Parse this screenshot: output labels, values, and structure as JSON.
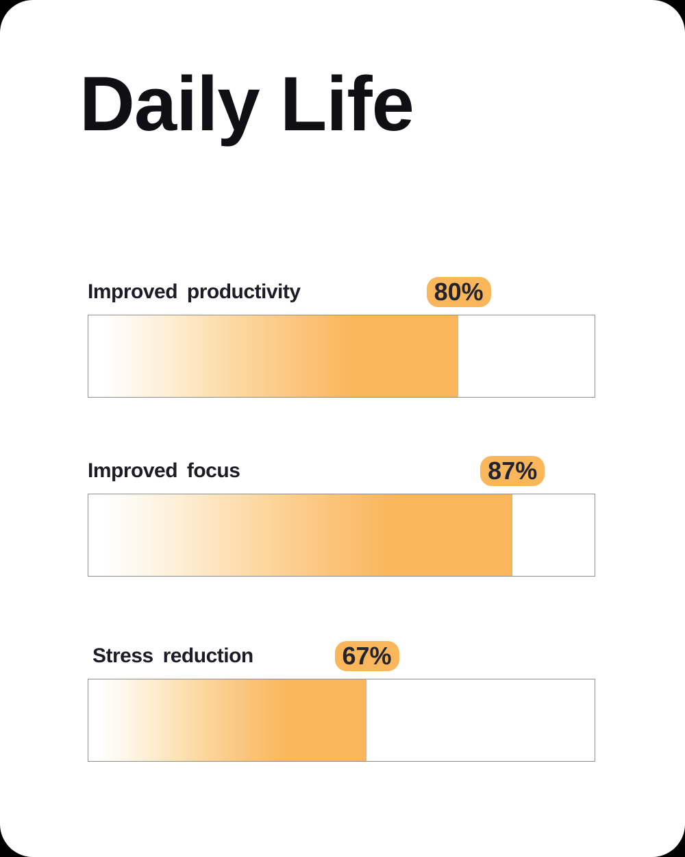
{
  "page": {
    "title": "Daily Life"
  },
  "chart_data": {
    "type": "bar",
    "orientation": "horizontal",
    "title": "Daily Life",
    "categories": [
      "Improved productivity",
      "Improved focus",
      "Stress reduction"
    ],
    "values": [
      80,
      87,
      67
    ],
    "value_labels": [
      "80%",
      "87%",
      "67%"
    ],
    "xlim": [
      0,
      100
    ],
    "grid": false,
    "legend": false,
    "colors": {
      "bar_fill_solid": "#FAB65A",
      "bar_gradient_start": "#FFFFFF",
      "track_border": "#8E8E8E",
      "track_background": "#FFFFFF",
      "badge_background": "#FAB65A",
      "badge_text": "#21242F",
      "label_text": "#1C1C26",
      "title_text": "#101014",
      "page_background": "#FFFFFF",
      "outside_background": "#000000"
    },
    "bars": [
      {
        "label": "Improved productivity",
        "value": 80,
        "value_label": "80%",
        "fill_percent": 73.1
      },
      {
        "label": "Improved focus",
        "value": 87,
        "value_label": "87%",
        "fill_percent": 83.7
      },
      {
        "label": "Stress reduction",
        "value": 67,
        "value_label": "67%",
        "fill_percent": 55.0
      }
    ]
  }
}
